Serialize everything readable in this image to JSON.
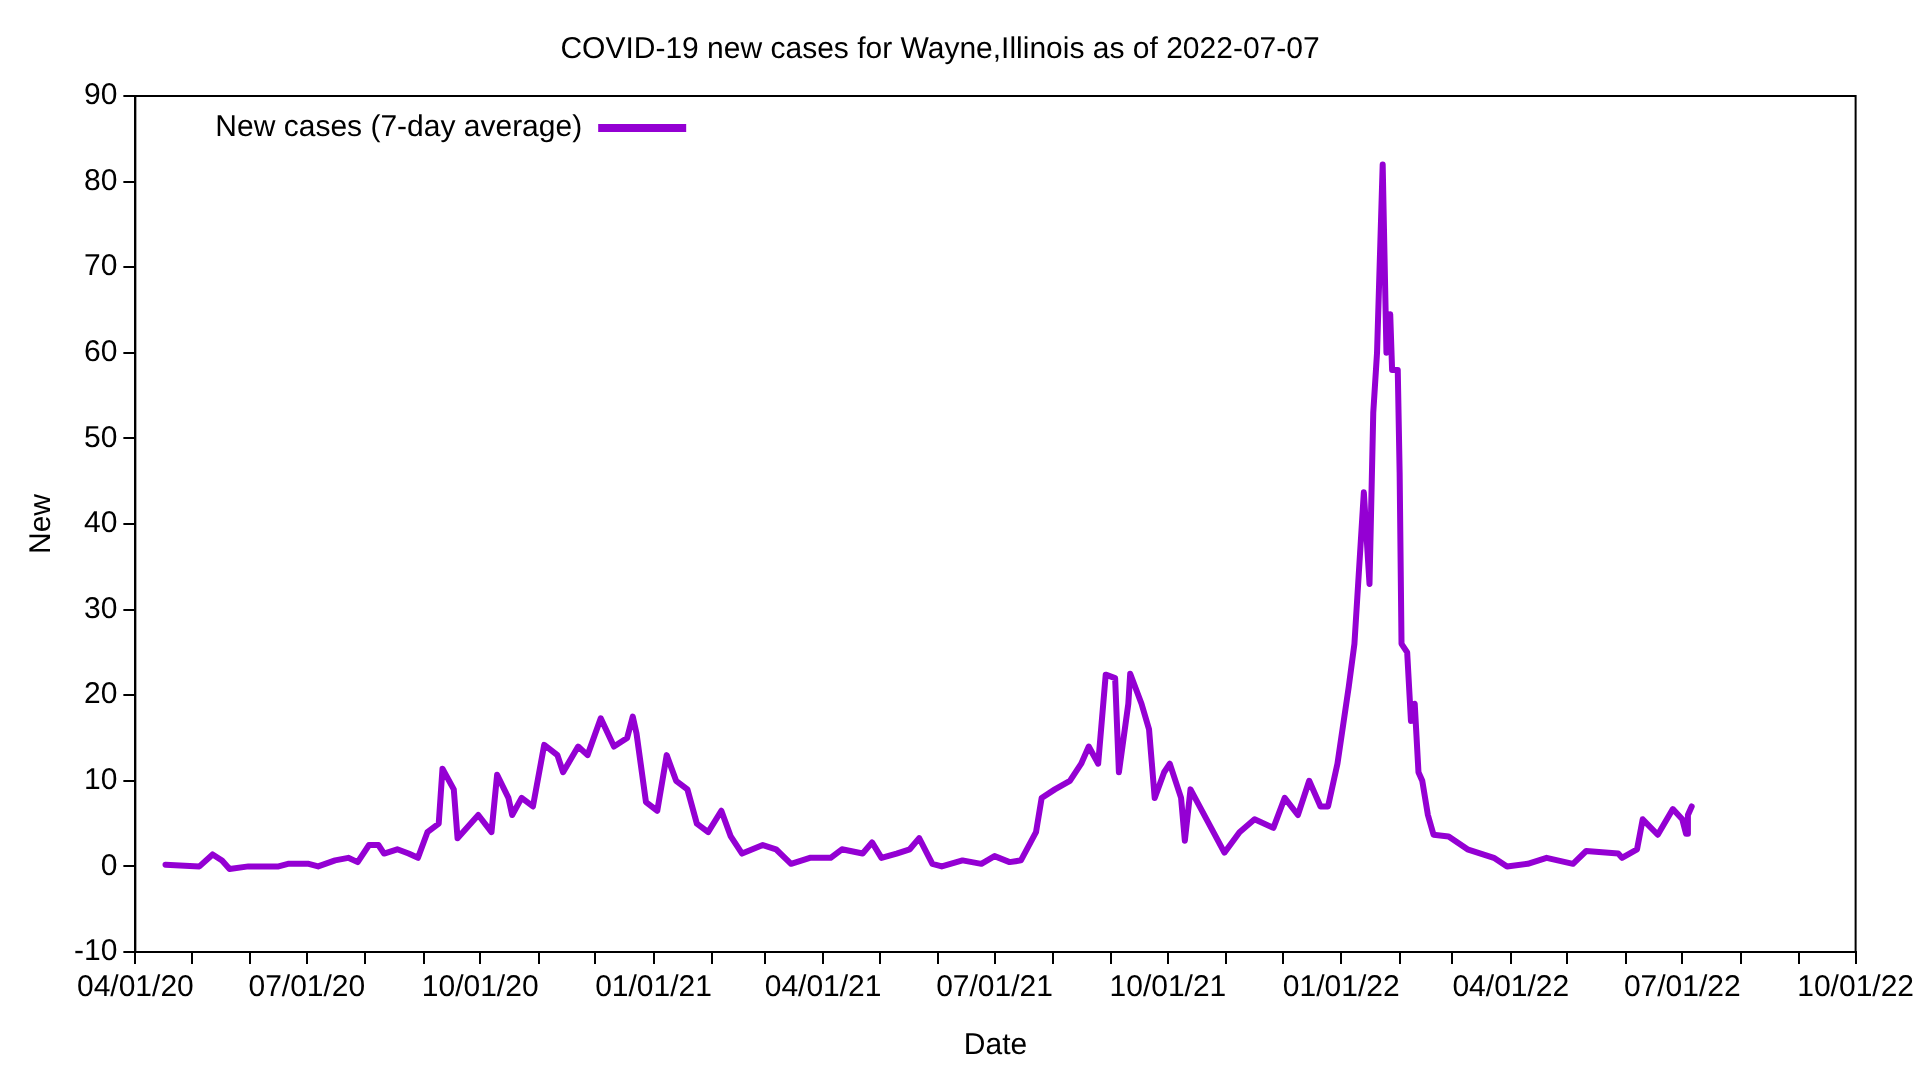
{
  "chart_data": {
    "type": "line",
    "title": "COVID-19 new cases for Wayne,Illinois as of 2022-07-07",
    "xlabel": "Date",
    "ylabel": "New",
    "legend": "top left",
    "grid": false,
    "marker": "none",
    "line_style": "solid",
    "xlim": [
      "2020-04-01",
      "2022-10-01"
    ],
    "xticks": [
      {
        "value": "2020-04-01",
        "label": "04/01/20"
      },
      {
        "value": "2020-05-01",
        "label": null
      },
      {
        "value": "2020-06-01",
        "label": null
      },
      {
        "value": "2020-07-01",
        "label": "07/01/20"
      },
      {
        "value": "2020-08-01",
        "label": null
      },
      {
        "value": "2020-09-01",
        "label": null
      },
      {
        "value": "2020-10-01",
        "label": "10/01/20"
      },
      {
        "value": "2020-11-01",
        "label": null
      },
      {
        "value": "2020-12-01",
        "label": null
      },
      {
        "value": "2021-01-01",
        "label": "01/01/21"
      },
      {
        "value": "2021-02-01",
        "label": null
      },
      {
        "value": "2021-03-01",
        "label": null
      },
      {
        "value": "2021-04-01",
        "label": "04/01/21"
      },
      {
        "value": "2021-05-01",
        "label": null
      },
      {
        "value": "2021-06-01",
        "label": null
      },
      {
        "value": "2021-07-01",
        "label": "07/01/21"
      },
      {
        "value": "2021-08-01",
        "label": null
      },
      {
        "value": "2021-09-01",
        "label": null
      },
      {
        "value": "2021-10-01",
        "label": "10/01/21"
      },
      {
        "value": "2021-11-01",
        "label": null
      },
      {
        "value": "2021-12-01",
        "label": null
      },
      {
        "value": "2022-01-01",
        "label": "01/01/22"
      },
      {
        "value": "2022-02-01",
        "label": null
      },
      {
        "value": "2022-03-01",
        "label": null
      },
      {
        "value": "2022-04-01",
        "label": "04/01/22"
      },
      {
        "value": "2022-05-01",
        "label": null
      },
      {
        "value": "2022-06-01",
        "label": null
      },
      {
        "value": "2022-07-01",
        "label": "07/01/22"
      },
      {
        "value": "2022-08-01",
        "label": null
      },
      {
        "value": "2022-09-01",
        "label": null
      },
      {
        "value": "2022-10-01",
        "label": "10/01/22"
      }
    ],
    "ylim": [
      -10,
      90
    ],
    "yticks": [
      -10,
      0,
      10,
      20,
      30,
      40,
      50,
      60,
      70,
      80,
      90
    ],
    "series": [
      {
        "name": "New cases (7-day average)",
        "color": "#9400d3",
        "x": [
          "2020-04-17",
          "2020-05-05",
          "2020-05-12",
          "2020-05-17",
          "2020-05-21",
          "2020-05-31",
          "2020-06-16",
          "2020-06-21",
          "2020-07-02",
          "2020-07-07",
          "2020-07-16",
          "2020-07-23",
          "2020-07-28",
          "2020-08-03",
          "2020-08-08",
          "2020-08-11",
          "2020-08-18",
          "2020-08-24",
          "2020-08-29",
          "2020-09-03",
          "2020-09-09",
          "2020-09-11",
          "2020-09-17",
          "2020-09-19",
          "2020-09-30",
          "2020-10-07",
          "2020-10-10",
          "2020-10-16",
          "2020-10-18",
          "2020-10-23",
          "2020-10-29",
          "2020-11-04",
          "2020-11-11",
          "2020-11-14",
          "2020-11-22",
          "2020-11-27",
          "2020-12-04",
          "2020-12-11",
          "2020-12-18",
          "2020-12-21",
          "2020-12-23",
          "2020-12-28",
          "2021-01-03",
          "2021-01-08",
          "2021-01-13",
          "2021-01-19",
          "2021-01-24",
          "2021-01-30",
          "2021-02-06",
          "2021-02-11",
          "2021-02-17",
          "2021-02-28",
          "2021-03-07",
          "2021-03-15",
          "2021-03-25",
          "2021-04-05",
          "2021-04-11",
          "2021-04-22",
          "2021-04-27",
          "2021-05-02",
          "2021-05-10",
          "2021-05-17",
          "2021-05-22",
          "2021-05-29",
          "2021-06-03",
          "2021-06-14",
          "2021-06-24",
          "2021-07-01",
          "2021-07-09",
          "2021-07-15",
          "2021-07-23",
          "2021-07-26",
          "2021-08-02",
          "2021-08-10",
          "2021-08-16",
          "2021-08-20",
          "2021-08-25",
          "2021-08-29",
          "2021-09-03",
          "2021-09-05",
          "2021-09-10",
          "2021-09-11",
          "2021-09-17",
          "2021-09-21",
          "2021-09-24",
          "2021-09-29",
          "2021-10-02",
          "2021-10-08",
          "2021-10-10",
          "2021-10-13",
          "2021-10-31",
          "2021-11-08",
          "2021-11-16",
          "2021-11-26",
          "2021-12-02",
          "2021-12-09",
          "2021-12-15",
          "2021-12-21",
          "2021-12-25",
          "2021-12-30",
          "2022-01-05",
          "2022-01-08",
          "2022-01-13",
          "2022-01-16",
          "2022-01-18",
          "2022-01-20",
          "2022-01-23",
          "2022-01-25",
          "2022-01-27",
          "2022-01-28",
          "2022-01-31",
          "2022-02-01",
          "2022-02-02",
          "2022-02-05",
          "2022-02-07",
          "2022-02-09",
          "2022-02-11",
          "2022-02-13",
          "2022-02-16",
          "2022-02-19",
          "2022-02-27",
          "2022-03-09",
          "2022-03-23",
          "2022-03-30",
          "2022-04-10",
          "2022-04-20",
          "2022-05-04",
          "2022-05-11",
          "2022-05-28",
          "2022-05-30",
          "2022-06-07",
          "2022-06-10",
          "2022-06-18",
          "2022-06-26",
          "2022-07-01",
          "2022-07-03",
          "2022-07-04",
          "2022-07-06"
        ],
        "values": [
          0.2,
          0,
          1.4,
          0.7,
          -0.3,
          0,
          0,
          0.3,
          0.3,
          0,
          0.7,
          1,
          0.5,
          2.5,
          2.5,
          1.5,
          2,
          1.5,
          1,
          4,
          5,
          11.4,
          9,
          3.3,
          6,
          4,
          10.7,
          8,
          6,
          8,
          7,
          14.2,
          13,
          11,
          14,
          13,
          17.3,
          14,
          15,
          17.5,
          15.5,
          7.5,
          6.5,
          13,
          10,
          9,
          5,
          4,
          6.5,
          3.5,
          1.5,
          2.5,
          2,
          0.3,
          1,
          1,
          2,
          1.5,
          2.8,
          1,
          1.5,
          2,
          3.3,
          0.3,
          0,
          0.7,
          0.3,
          1.2,
          0.5,
          0.7,
          4,
          8,
          9,
          10,
          12,
          14,
          12,
          22.4,
          22,
          11,
          19,
          22.5,
          19,
          16,
          8,
          11,
          12,
          8,
          3,
          9,
          1.6,
          4,
          5.5,
          4.5,
          8,
          6,
          10,
          7,
          7,
          12,
          21,
          26,
          43.7,
          33,
          53,
          60,
          82,
          60,
          64.5,
          58,
          58,
          46,
          26,
          25,
          17,
          19,
          11,
          10,
          6,
          3.7,
          3.5,
          2,
          1,
          0,
          0.3,
          1,
          0.3,
          1.8,
          1.5,
          1,
          2,
          5.5,
          3.7,
          6.7,
          5.5,
          3.8,
          6,
          7
        ]
      }
    ]
  }
}
